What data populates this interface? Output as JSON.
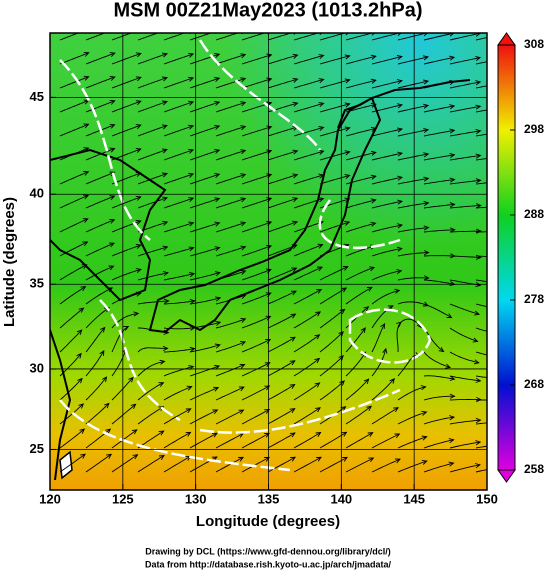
{
  "chart_data": {
    "type": "map",
    "projection": "mercator",
    "title": "MSM 00Z21May2023 (1013.2hPa)",
    "xlabel": "Longitude (degrees)",
    "ylabel": "Latitude  (degrees)",
    "xlim": [
      120,
      150
    ],
    "ylim": [
      22.4,
      48.1
    ],
    "xticks": [
      120,
      125,
      130,
      135,
      140,
      145,
      150
    ],
    "yticks": [
      25,
      30,
      35,
      40,
      45
    ],
    "grid": true,
    "colorbar": {
      "lim": [
        258,
        308
      ],
      "ticks": [
        258,
        268,
        278,
        288,
        298,
        308
      ],
      "colors": [
        "#e000e0",
        "#0010d0",
        "#00d8f0",
        "#10d020",
        "#f0f000",
        "#f01010"
      ]
    }
  },
  "credits": [
    "Drawing by DCL (https://www.gfd-dennou.org/library/dcl/)",
    "Data from http://database.rish.kyoto-u.ac.jp/arch/jmadata/"
  ]
}
